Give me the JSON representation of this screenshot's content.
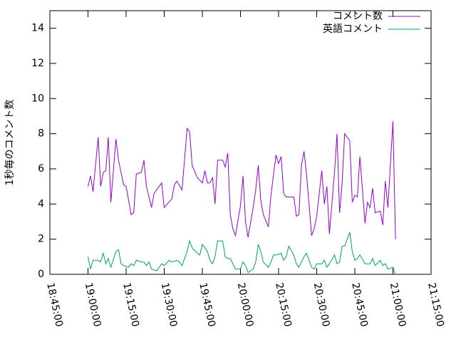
{
  "chart_data": {
    "type": "line",
    "ylabel": "1秒毎のコメント数",
    "xlim": [
      "18:45:00",
      "21:15:00"
    ],
    "xticks": [
      "18:45:00",
      "19:00:00",
      "19:15:00",
      "19:30:00",
      "19:45:00",
      "20:00:00",
      "20:15:00",
      "20:30:00",
      "20:45:00",
      "21:00:00",
      "21:15:00"
    ],
    "ylim": [
      0,
      15
    ],
    "yticks": [
      0,
      2,
      4,
      6,
      8,
      10,
      12,
      14
    ],
    "legend": "top-right",
    "series": [
      {
        "name": "コメント数",
        "color": "#9400d3",
        "x": [
          "19:00:00",
          "19:01:00",
          "19:02:00",
          "19:04:00",
          "19:05:00",
          "19:06:00",
          "19:07:00",
          "19:08:00",
          "19:09:00",
          "19:11:00",
          "19:12:00",
          "19:14:00",
          "19:15:00",
          "19:17:00",
          "19:18:00",
          "19:19:00",
          "19:21:00",
          "19:22:00",
          "19:23:00",
          "19:25:00",
          "19:26:00",
          "19:29:00",
          "19:30:00",
          "19:33:00",
          "19:34:00",
          "19:35:00",
          "19:37:00",
          "19:39:00",
          "19:40:00",
          "19:41:00",
          "19:43:00",
          "19:45:00",
          "19:46:00",
          "19:47:00",
          "19:48:00",
          "19:49:00",
          "19:50:00",
          "19:51:00",
          "19:53:00",
          "19:54:00",
          "19:55:00",
          "19:56:00",
          "19:57:00",
          "19:58:00",
          "20:00:00",
          "20:01:00",
          "20:02:00",
          "20:03:00",
          "20:05:00",
          "20:06:00",
          "20:07:00",
          "20:08:00",
          "20:09:00",
          "20:11:00",
          "20:12:00",
          "20:14:00",
          "20:15:00",
          "20:16:00",
          "20:17:00",
          "20:18:00",
          "20:21:00",
          "20:22:00",
          "20:23:00",
          "20:24:00",
          "20:25:00",
          "20:26:00",
          "20:28:00",
          "20:29:00",
          "20:30:00",
          "20:32:00",
          "20:33:00",
          "20:34:00",
          "20:35:00",
          "20:37:00",
          "20:38:00",
          "20:39:00",
          "20:40:00",
          "20:41:00",
          "20:43:00",
          "20:44:00",
          "20:45:00",
          "20:46:00",
          "20:47:00",
          "20:49:00",
          "20:50:00",
          "20:51:00",
          "20:52:00",
          "20:53:00",
          "20:55:00",
          "20:56:00",
          "20:57:00",
          "20:58:00",
          "21:00:00",
          "21:01:00"
        ],
        "values": [
          5.0,
          5.6,
          4.7,
          7.8,
          5.0,
          5.8,
          5.9,
          7.8,
          4.1,
          7.7,
          6.5,
          5.1,
          5.0,
          3.4,
          3.5,
          5.7,
          5.8,
          6.5,
          5.0,
          3.8,
          4.6,
          5.2,
          3.8,
          4.3,
          5.1,
          5.3,
          4.8,
          8.3,
          8.1,
          6.2,
          5.5,
          5.2,
          5.9,
          5.2,
          5.2,
          5.5,
          4.0,
          6.5,
          6.5,
          6.1,
          6.9,
          3.4,
          2.6,
          2.2,
          3.9,
          5.6,
          3.0,
          2.1,
          3.8,
          4.8,
          6.2,
          4.2,
          3.4,
          2.7,
          4.5,
          6.8,
          6.3,
          6.7,
          4.6,
          4.4,
          4.4,
          3.3,
          3.4,
          6.2,
          7.0,
          5.7,
          2.2,
          2.6,
          3.3,
          5.9,
          4.0,
          5.0,
          2.3,
          5.8,
          8.0,
          3.5,
          5.2,
          8.0,
          7.6,
          4.1,
          4.5,
          4.4,
          6.7,
          2.9,
          4.1,
          3.8,
          4.9,
          3.5,
          3.6,
          2.8,
          5.3,
          3.8,
          8.7,
          2.0
        ]
      },
      {
        "name": "英語コメント",
        "color": "#009e73",
        "x": [
          "19:00:00",
          "19:01:00",
          "19:02:00",
          "19:04:00",
          "19:05:00",
          "19:06:00",
          "19:07:00",
          "19:08:00",
          "19:09:00",
          "19:11:00",
          "19:12:00",
          "19:13:00",
          "19:14:00",
          "19:16:00",
          "19:17:00",
          "19:18:00",
          "19:19:00",
          "19:21:00",
          "19:22:00",
          "19:23:00",
          "19:24:00",
          "19:25:00",
          "19:27:00",
          "19:28:00",
          "19:29:00",
          "19:30:00",
          "19:32:00",
          "19:33:00",
          "19:35:00",
          "19:36:00",
          "19:37:00",
          "19:39:00",
          "19:40:00",
          "19:41:00",
          "19:43:00",
          "19:44:00",
          "19:45:00",
          "19:47:00",
          "19:48:00",
          "19:49:00",
          "19:50:00",
          "19:51:00",
          "19:53:00",
          "19:54:00",
          "19:55:00",
          "19:56:00",
          "19:57:00",
          "19:58:00",
          "20:00:00",
          "20:01:00",
          "20:02:00",
          "20:03:00",
          "20:05:00",
          "20:06:00",
          "20:07:00",
          "20:08:00",
          "20:09:00",
          "20:11:00",
          "20:12:00",
          "20:13:00",
          "20:14:00",
          "20:16:00",
          "20:17:00",
          "20:18:00",
          "20:19:00",
          "20:21:00",
          "20:22:00",
          "20:23:00",
          "20:24:00",
          "20:25:00",
          "20:26:00",
          "20:28:00",
          "20:29:00",
          "20:30:00",
          "20:32:00",
          "20:33:00",
          "20:34:00",
          "20:35:00",
          "20:37:00",
          "20:38:00",
          "20:39:00",
          "20:40:00",
          "20:41:00",
          "20:43:00",
          "20:44:00",
          "20:45:00",
          "20:46:00",
          "20:47:00",
          "20:49:00",
          "20:50:00",
          "20:51:00",
          "20:52:00",
          "20:53:00",
          "20:55:00",
          "20:56:00",
          "20:57:00",
          "20:58:00",
          "21:00:00",
          "21:01:00"
        ],
        "values": [
          1.0,
          0.3,
          0.8,
          0.8,
          0.7,
          1.2,
          0.6,
          0.9,
          0.4,
          1.3,
          1.4,
          0.6,
          0.5,
          0.4,
          0.6,
          0.5,
          0.8,
          0.7,
          0.7,
          0.5,
          0.7,
          0.3,
          0.2,
          0.4,
          0.6,
          0.5,
          0.8,
          0.7,
          0.8,
          0.7,
          0.5,
          1.3,
          1.9,
          1.5,
          1.2,
          1.1,
          1.7,
          1.3,
          0.8,
          0.6,
          1.0,
          1.9,
          1.9,
          1.0,
          0.9,
          0.9,
          0.6,
          0.3,
          0.3,
          0.7,
          0.5,
          0.1,
          0.3,
          0.7,
          1.7,
          1.3,
          0.7,
          0.4,
          0.7,
          1.1,
          1.1,
          1.2,
          0.8,
          1.0,
          1.6,
          1.1,
          0.6,
          0.4,
          0.7,
          1.0,
          1.2,
          0.4,
          0.3,
          0.6,
          0.6,
          0.8,
          0.4,
          0.6,
          1.1,
          0.6,
          0.7,
          1.6,
          1.6,
          2.4,
          1.3,
          0.8,
          0.9,
          1.1,
          0.6,
          0.6,
          0.6,
          0.9,
          0.5,
          0.8,
          0.5,
          0.6,
          0.3,
          0.4,
          0.0
        ]
      }
    ]
  }
}
